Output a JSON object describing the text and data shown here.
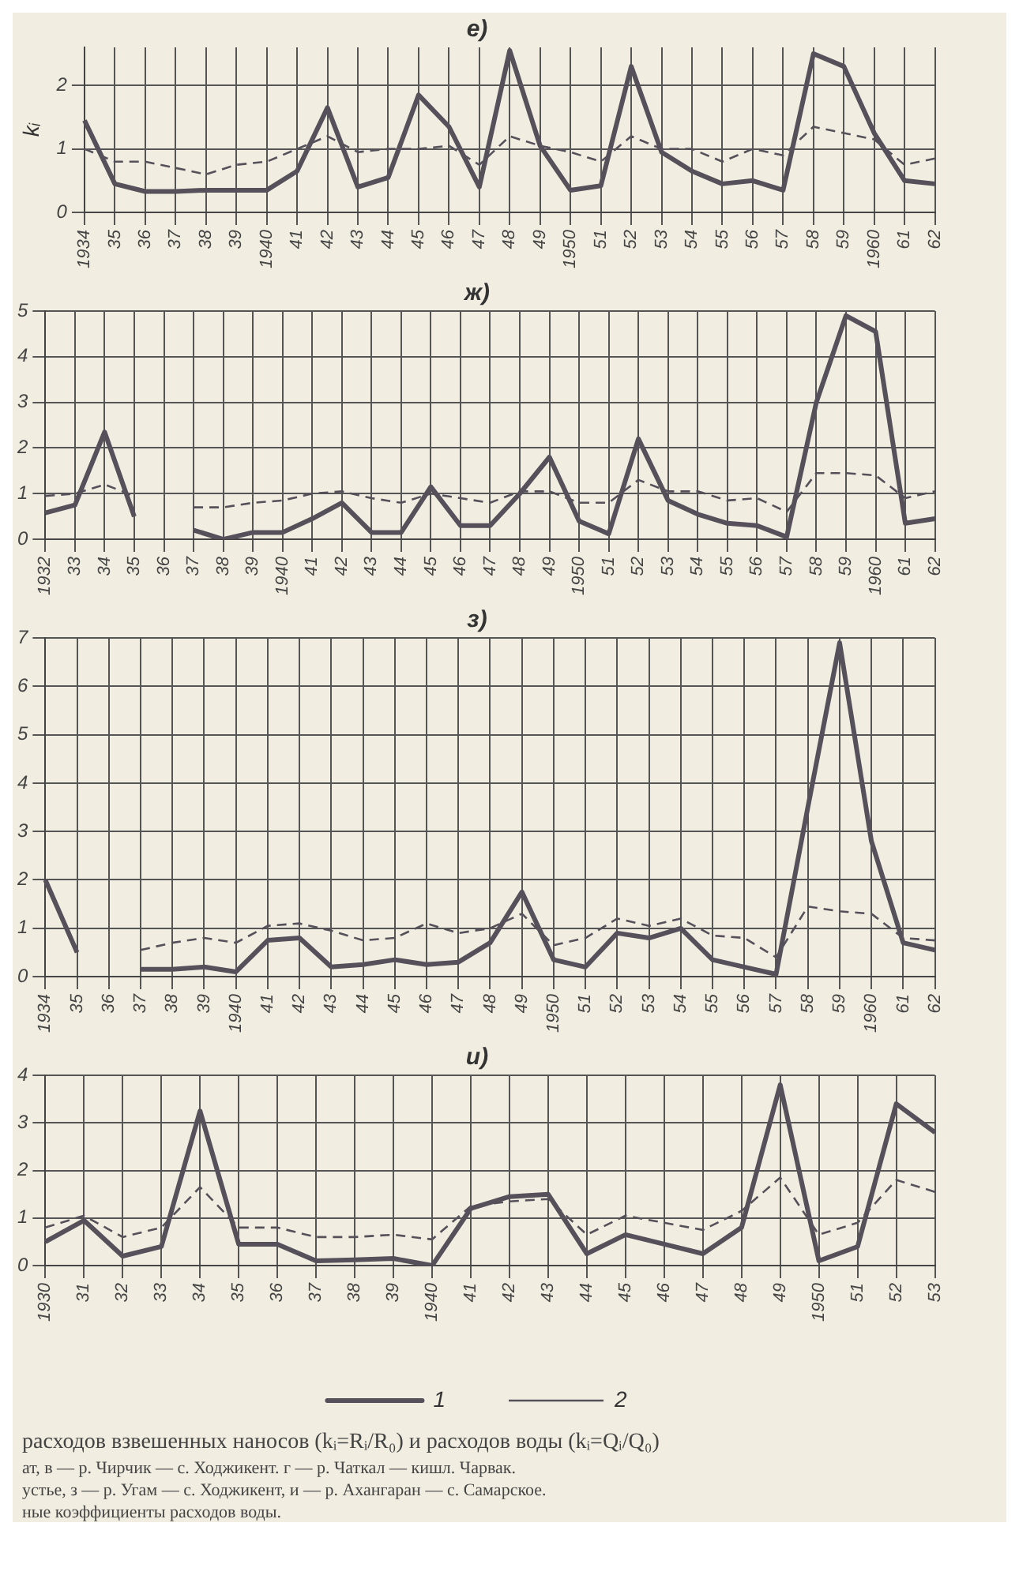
{
  "chart_data": [
    {
      "type": "line",
      "title": "е)",
      "ylabel": "kᵢ",
      "categories": [
        "1934",
        "35",
        "36",
        "37",
        "38",
        "39",
        "1940",
        "41",
        "42",
        "43",
        "44",
        "45",
        "46",
        "47",
        "48",
        "49",
        "1950",
        "51",
        "52",
        "53",
        "54",
        "55",
        "56",
        "57",
        "58",
        "59",
        "1960",
        "61",
        "62"
      ],
      "ylim": [
        0,
        2.6
      ],
      "yticks": [
        0,
        1,
        2
      ],
      "grid": true,
      "marker": "none",
      "series": [
        {
          "color": "#55505a",
          "line_style": "solid",
          "values": [
            1.45,
            0.45,
            0.33,
            0.33,
            0.35,
            0.35,
            0.35,
            0.65,
            1.65,
            0.4,
            0.55,
            1.85,
            1.35,
            0.4,
            2.55,
            1.05,
            0.35,
            0.42,
            2.3,
            0.95,
            0.65,
            0.45,
            0.5,
            0.35,
            2.5,
            2.3,
            1.25,
            0.5,
            0.45
          ]
        },
        {
          "color": "#55505a",
          "line_style": "dashed",
          "values": [
            1.0,
            0.8,
            0.8,
            0.7,
            0.6,
            0.75,
            0.8,
            1.0,
            1.2,
            0.95,
            1.0,
            1.0,
            1.05,
            0.75,
            1.2,
            1.05,
            0.95,
            0.8,
            1.2,
            1.0,
            1.0,
            0.8,
            1.0,
            0.9,
            1.35,
            1.25,
            1.15,
            0.75,
            0.85
          ]
        }
      ]
    },
    {
      "type": "line",
      "title": "ж)",
      "categories": [
        "1932",
        "33",
        "34",
        "35",
        "36",
        "37",
        "38",
        "39",
        "1940",
        "41",
        "42",
        "43",
        "44",
        "45",
        "46",
        "47",
        "48",
        "49",
        "1950",
        "51",
        "52",
        "53",
        "54",
        "55",
        "56",
        "57",
        "58",
        "59",
        "1960",
        "61",
        "62"
      ],
      "ylim": [
        0,
        5
      ],
      "yticks": [
        0,
        1,
        2,
        3,
        4,
        5
      ],
      "grid": true,
      "marker": "none",
      "series": [
        {
          "color": "#55505a",
          "line_style": "solid",
          "values": [
            0.58,
            0.75,
            2.35,
            0.5,
            null,
            0.2,
            0.0,
            0.15,
            0.15,
            0.45,
            0.8,
            0.15,
            0.15,
            1.15,
            0.3,
            0.3,
            1.0,
            1.8,
            0.4,
            0.12,
            2.2,
            0.85,
            0.55,
            0.35,
            0.3,
            0.05,
            3.0,
            4.9,
            4.55,
            0.35,
            0.45
          ]
        },
        {
          "color": "#55505a",
          "line_style": "dashed",
          "values": [
            0.95,
            1.0,
            1.2,
            0.95,
            null,
            0.7,
            0.7,
            0.8,
            0.85,
            1.0,
            1.05,
            0.9,
            0.8,
            1.0,
            0.9,
            0.8,
            1.05,
            1.05,
            0.8,
            0.8,
            1.3,
            1.05,
            1.05,
            0.85,
            0.9,
            0.6,
            1.45,
            1.45,
            1.4,
            0.9,
            1.05
          ]
        }
      ]
    },
    {
      "type": "line",
      "title": "з)",
      "categories": [
        "1934",
        "35",
        "36",
        "37",
        "38",
        "39",
        "1940",
        "41",
        "42",
        "43",
        "44",
        "45",
        "46",
        "47",
        "48",
        "49",
        "1950",
        "51",
        "52",
        "53",
        "54",
        "55",
        "56",
        "57",
        "58",
        "59",
        "1960",
        "61",
        "62"
      ],
      "ylim": [
        0,
        7
      ],
      "yticks": [
        0,
        1,
        2,
        3,
        4,
        5,
        6,
        7
      ],
      "grid": true,
      "marker": "none",
      "series": [
        {
          "color": "#55505a",
          "line_style": "solid",
          "values": [
            2.0,
            0.5,
            null,
            0.15,
            0.15,
            0.2,
            0.1,
            0.75,
            0.8,
            0.2,
            0.25,
            0.35,
            0.25,
            0.3,
            0.7,
            1.75,
            0.35,
            0.2,
            0.9,
            0.8,
            1.0,
            0.35,
            0.2,
            0.05,
            3.5,
            6.9,
            2.8,
            0.7,
            0.55
          ]
        },
        {
          "color": "#55505a",
          "line_style": "dashed",
          "values": [
            null,
            null,
            null,
            0.55,
            0.7,
            0.8,
            0.7,
            1.05,
            1.1,
            0.95,
            0.75,
            0.8,
            1.1,
            0.9,
            1.0,
            1.3,
            0.65,
            0.8,
            1.2,
            1.05,
            1.2,
            0.85,
            0.8,
            0.4,
            1.45,
            1.35,
            1.3,
            0.8,
            0.75
          ]
        }
      ]
    },
    {
      "type": "line",
      "title": "и)",
      "categories": [
        "1930",
        "31",
        "32",
        "33",
        "34",
        "35",
        "36",
        "37",
        "38",
        "39",
        "1940",
        "41",
        "42",
        "43",
        "44",
        "45",
        "46",
        "47",
        "48",
        "49",
        "1950",
        "51",
        "52",
        "53"
      ],
      "ylim": [
        0,
        4
      ],
      "yticks": [
        0,
        1,
        2,
        3,
        4
      ],
      "grid": true,
      "marker": "none",
      "legend": "bottom",
      "series": [
        {
          "name": "1",
          "color": "#55505a",
          "line_style": "solid",
          "values": [
            0.5,
            0.95,
            0.2,
            0.4,
            3.25,
            0.45,
            0.45,
            0.1,
            0.12,
            0.15,
            0.0,
            1.2,
            1.45,
            1.5,
            0.25,
            0.65,
            0.45,
            0.25,
            0.8,
            3.8,
            0.1,
            0.4,
            3.4,
            2.8
          ]
        },
        {
          "name": "2",
          "color": "#55505a",
          "line_style": "dashed",
          "values": [
            0.8,
            1.05,
            0.6,
            0.8,
            1.65,
            0.8,
            0.8,
            0.6,
            0.6,
            0.65,
            0.55,
            1.25,
            1.35,
            1.4,
            0.65,
            1.05,
            0.9,
            0.75,
            1.15,
            1.85,
            0.65,
            0.9,
            1.8,
            1.55
          ]
        }
      ],
      "annotations": [
        "расходов взвешенных наносов (kᵢ=Rᵢ/R₀) и расходов воды (kᵢ=Qᵢ/Q₀)",
        "ат, в — р. Чирчик — с. Ходжикент. г — р. Чаткал — кишл. Чарвак.",
        "устье, з — р. Угам — с. Ходжикент, и — р. Ахангаран — с. Самарское.",
        "ные коэффициенты расходов воды."
      ]
    }
  ]
}
